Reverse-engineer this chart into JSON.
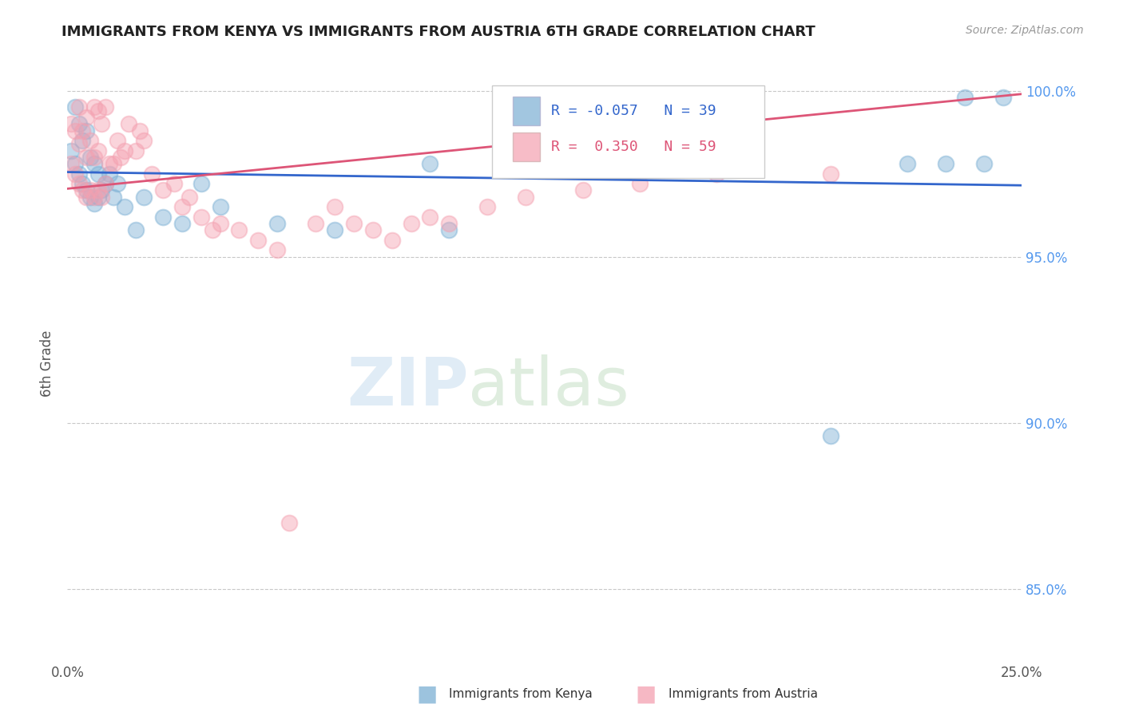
{
  "title": "IMMIGRANTS FROM KENYA VS IMMIGRANTS FROM AUSTRIA 6TH GRADE CORRELATION CHART",
  "source": "Source: ZipAtlas.com",
  "xlabel_kenya": "Immigrants from Kenya",
  "xlabel_austria": "Immigrants from Austria",
  "ylabel": "6th Grade",
  "xlim": [
    0.0,
    0.25
  ],
  "ylim": [
    0.828,
    1.008
  ],
  "xticks": [
    0.0,
    0.05,
    0.1,
    0.15,
    0.2,
    0.25
  ],
  "xtick_labels": [
    "0.0%",
    "",
    "",
    "",
    "",
    "25.0%"
  ],
  "yticks": [
    0.85,
    0.9,
    0.95,
    1.0
  ],
  "ytick_labels": [
    "85.0%",
    "90.0%",
    "95.0%",
    "100.0%"
  ],
  "grid_color": "#c8c8c8",
  "kenya_color": "#7bafd4",
  "austria_color": "#f4a0b0",
  "kenya_R": -0.057,
  "kenya_N": 39,
  "austria_R": 0.35,
  "austria_N": 59,
  "kenya_line_color": "#3366cc",
  "austria_line_color": "#dd5577",
  "kenya_line_y0": 0.9755,
  "kenya_line_y1": 0.9715,
  "austria_line_y0": 0.9705,
  "austria_line_y1": 0.999,
  "kenya_x": [
    0.001,
    0.002,
    0.002,
    0.003,
    0.003,
    0.004,
    0.004,
    0.005,
    0.005,
    0.006,
    0.006,
    0.007,
    0.007,
    0.008,
    0.008,
    0.009,
    0.01,
    0.011,
    0.012,
    0.013,
    0.015,
    0.018,
    0.02,
    0.025,
    0.03,
    0.035,
    0.04,
    0.055,
    0.07,
    0.095,
    0.1,
    0.16,
    0.175,
    0.2,
    0.22,
    0.23,
    0.235,
    0.24,
    0.245
  ],
  "kenya_y": [
    0.982,
    0.978,
    0.995,
    0.975,
    0.99,
    0.972,
    0.985,
    0.97,
    0.988,
    0.968,
    0.98,
    0.966,
    0.978,
    0.968,
    0.975,
    0.97,
    0.972,
    0.975,
    0.968,
    0.972,
    0.965,
    0.958,
    0.968,
    0.962,
    0.96,
    0.972,
    0.965,
    0.96,
    0.958,
    0.978,
    0.958,
    0.978,
    0.978,
    0.896,
    0.978,
    0.978,
    0.998,
    0.978,
    0.998
  ],
  "austria_x": [
    0.001,
    0.001,
    0.002,
    0.002,
    0.003,
    0.003,
    0.003,
    0.004,
    0.004,
    0.005,
    0.005,
    0.005,
    0.006,
    0.006,
    0.007,
    0.007,
    0.007,
    0.008,
    0.008,
    0.008,
    0.009,
    0.009,
    0.01,
    0.01,
    0.011,
    0.012,
    0.013,
    0.014,
    0.015,
    0.016,
    0.018,
    0.019,
    0.02,
    0.022,
    0.025,
    0.028,
    0.03,
    0.032,
    0.035,
    0.038,
    0.04,
    0.045,
    0.05,
    0.055,
    0.058,
    0.065,
    0.07,
    0.075,
    0.08,
    0.085,
    0.09,
    0.095,
    0.1,
    0.11,
    0.12,
    0.135,
    0.15,
    0.17,
    0.2
  ],
  "austria_y": [
    0.978,
    0.99,
    0.975,
    0.988,
    0.972,
    0.984,
    0.995,
    0.97,
    0.988,
    0.968,
    0.98,
    0.992,
    0.97,
    0.985,
    0.968,
    0.98,
    0.995,
    0.97,
    0.982,
    0.994,
    0.968,
    0.99,
    0.972,
    0.995,
    0.978,
    0.978,
    0.985,
    0.98,
    0.982,
    0.99,
    0.982,
    0.988,
    0.985,
    0.975,
    0.97,
    0.972,
    0.965,
    0.968,
    0.962,
    0.958,
    0.96,
    0.958,
    0.955,
    0.952,
    0.87,
    0.96,
    0.965,
    0.96,
    0.958,
    0.955,
    0.96,
    0.962,
    0.96,
    0.965,
    0.968,
    0.97,
    0.972,
    0.975,
    0.975
  ]
}
